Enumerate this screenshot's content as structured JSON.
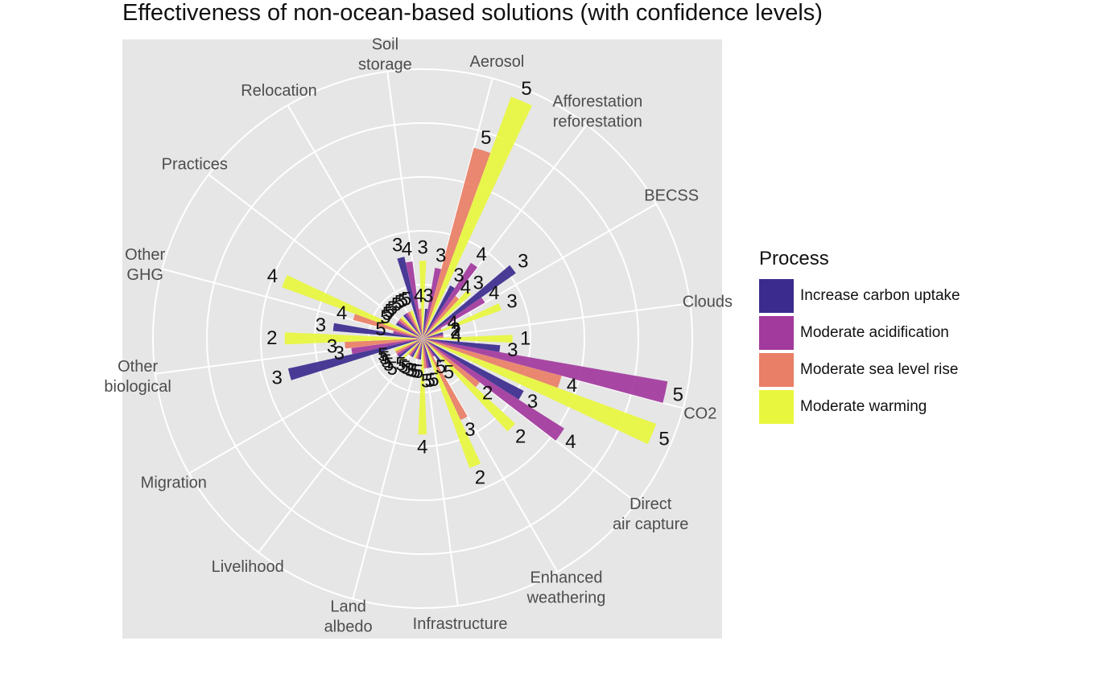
{
  "chart_data": {
    "type": "bar",
    "coord": "polar",
    "title": "Effectiveness of non-ocean-based solutions (with confidence levels)",
    "legend": {
      "title": "Process",
      "position": "right",
      "entries": [
        {
          "name": "Increase carbon uptake",
          "color": "#3b2b8e"
        },
        {
          "name": "Moderate acidification",
          "color": "#a23a9d"
        },
        {
          "name": "Moderate sea level rise",
          "color": "#e97f66"
        },
        {
          "name": "Moderate warming",
          "color": "#e8f73e"
        }
      ]
    },
    "grid": true,
    "ylim": [
      0,
      4.5
    ],
    "categories": [
      "Aerosol",
      "Afforestation\nreforestation",
      "BECSS",
      "Clouds",
      "CO2",
      "Direct\nair capture",
      "Enhanced\nweathering",
      "Infrastructure",
      "Land\nalbedo",
      "Livelihood",
      "Migration",
      "Other\nbiological",
      "Other\nGHG",
      "Practices",
      "Relocation",
      "Soil\nstorage"
    ],
    "series": [
      {
        "name": "Increase carbon uptake",
        "values": [
          0.5,
          1.0,
          1.9,
          0.35,
          1.3,
          1.9,
          0.5,
          0.5,
          0.35,
          0.35,
          0.5,
          2.3,
          1.5,
          0.5,
          0.5,
          1.4
        ],
        "labels": [
          "3",
          "3",
          "3",
          "2",
          "3",
          "3",
          "5",
          "5",
          "5",
          "5",
          "5",
          "3",
          "3",
          "5",
          "5",
          "3"
        ]
      },
      {
        "name": "Moderate acidification",
        "values": [
          1.2,
          1.5,
          1.2,
          0.35,
          4.15,
          2.8,
          0.35,
          0.5,
          0.35,
          0.35,
          0.5,
          1.2,
          0.5,
          0.5,
          0.5,
          1.3
        ],
        "labels": [
          "3",
          "4",
          "4",
          "2",
          "5",
          "4",
          "5",
          "5",
          "5",
          "5",
          "5",
          "3",
          "5",
          "5",
          "5",
          "4"
        ]
      },
      {
        "name": "Moderate sea level rise",
        "values": [
          3.3,
          0.9,
          0.35,
          0.35,
          2.4,
          1.2,
          1.5,
          0.5,
          0.35,
          0.35,
          0.5,
          1.3,
          1.2,
          0.5,
          0.5,
          0.5
        ],
        "labels": [
          "5",
          "4",
          "4",
          "4",
          "4",
          "2",
          "3",
          "5",
          "5",
          "5",
          "5",
          "3",
          "4",
          "5",
          "5",
          "4"
        ]
      },
      {
        "name": "Moderate warming",
        "values": [
          4.3,
          1.1,
          1.4,
          1.5,
          4.15,
          2.1,
          2.3,
          1.6,
          0.35,
          0.5,
          0.5,
          2.3,
          2.5,
          0.5,
          0.5,
          1.3
        ],
        "labels": [
          "5",
          "3",
          "3",
          "1",
          "5",
          "2",
          "2",
          "4",
          "3",
          "5",
          "5",
          "2",
          "4",
          "5",
          "5",
          "3"
        ]
      }
    ]
  }
}
